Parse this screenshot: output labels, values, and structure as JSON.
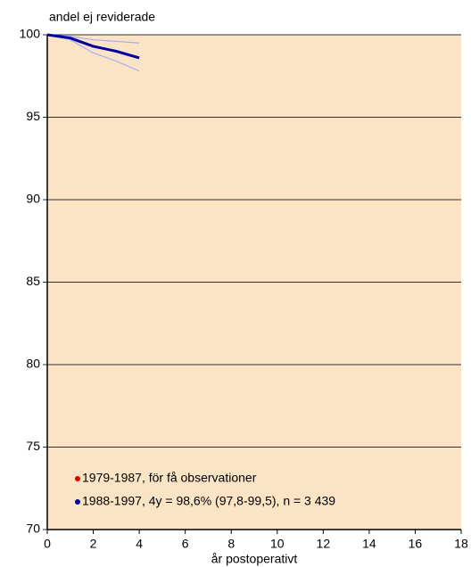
{
  "chart_data": {
    "type": "line",
    "y_label": "andel ej reviderade",
    "x_label": "år postoperativt",
    "x": [
      0,
      1,
      2,
      3,
      4
    ],
    "series": [
      {
        "name": "1979-1987, för få observationer",
        "color": "#e00000",
        "values": [
          null,
          null,
          null,
          null,
          null
        ]
      },
      {
        "name": "1988-1997,  4y = 98,6% (97,8-99,5), n = 3 439",
        "color": "#0000a0",
        "values": [
          100,
          99.8,
          99.3,
          99.0,
          98.6
        ],
        "upper": [
          100,
          99.9,
          99.7,
          99.6,
          99.5
        ],
        "lower": [
          100,
          99.7,
          98.9,
          98.4,
          97.8
        ],
        "band_color": "#a8aef0"
      }
    ],
    "xlim": [
      0,
      18
    ],
    "xticks": [
      0,
      2,
      4,
      6,
      8,
      10,
      12,
      14,
      16,
      18
    ],
    "ylim": [
      70,
      100
    ],
    "yticks": [
      70,
      75,
      80,
      85,
      90,
      95,
      100
    ],
    "grid": true,
    "background": "#fbe4c6"
  }
}
